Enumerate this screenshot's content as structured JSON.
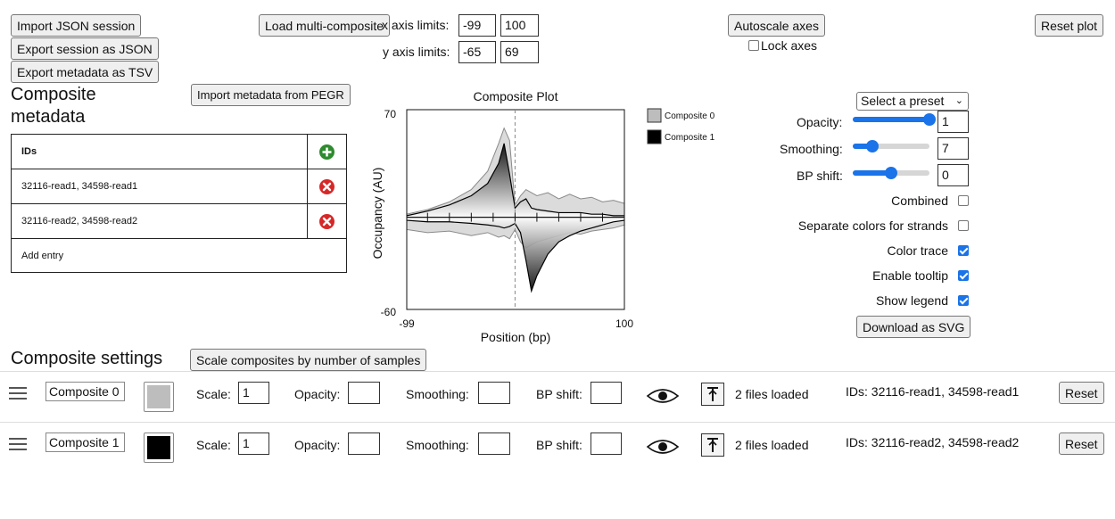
{
  "toolbar": {
    "import_json": "Import JSON session",
    "export_json": "Export session as JSON",
    "export_tsv": "Export metadata as TSV",
    "load_multi": "Load multi-composite",
    "x_limits_label": "x axis limits:",
    "y_limits_label": "y axis limits:",
    "x_min": "-99",
    "x_max": "100",
    "y_min": "-65",
    "y_max": "69",
    "autoscale": "Autoscale axes",
    "lock_axes": "Lock axes",
    "lock_axes_checked": false,
    "reset_plot": "Reset plot"
  },
  "metadata": {
    "heading_line1": "Composite",
    "heading_line2": "metadata",
    "import_pegr": "Import metadata from PEGR",
    "header": "IDs",
    "rows": [
      "32116-read1, 34598-read1",
      "32116-read2, 34598-read2"
    ],
    "add_entry": "Add entry",
    "add_icon": "plus-circle-icon",
    "remove_icon": "x-circle-icon",
    "add_color": "#2e8b2e",
    "remove_color": "#d62828"
  },
  "chart_data": {
    "type": "area",
    "title": "Composite Plot",
    "xlabel": "Position (bp)",
    "ylabel": "Occupancy (AU)",
    "xlim": [
      -99,
      100
    ],
    "ylim": [
      -60,
      70
    ],
    "x_ticks": [
      "-99",
      "100"
    ],
    "y_ticks": [
      "70",
      "-60"
    ],
    "legend": {
      "placement": "right",
      "entries": [
        "Composite 0",
        "Composite 1"
      ]
    },
    "series": [
      {
        "name": "Composite 0",
        "color": "#bdbdbd",
        "x": [
          -99,
          -80,
          -60,
          -40,
          -25,
          -15,
          -10,
          -5,
          0,
          5,
          10,
          20,
          30,
          40,
          50,
          60,
          70,
          80,
          90,
          100
        ],
        "forward": [
          2,
          5,
          10,
          18,
          30,
          48,
          58,
          50,
          8,
          14,
          18,
          14,
          16,
          12,
          15,
          12,
          13,
          10,
          11,
          9
        ],
        "reverse": [
          -8,
          -10,
          -9,
          -12,
          -10,
          -13,
          -12,
          -14,
          -8,
          -16,
          -20,
          -16,
          -14,
          -12,
          -10,
          -11,
          -9,
          -8,
          -7,
          -5
        ]
      },
      {
        "name": "Composite 1",
        "color": "#000000",
        "x": [
          -99,
          -80,
          -60,
          -40,
          -25,
          -15,
          -10,
          -5,
          0,
          5,
          10,
          15,
          20,
          30,
          40,
          50,
          60,
          70,
          80,
          90,
          100
        ],
        "forward": [
          1,
          4,
          8,
          14,
          22,
          35,
          48,
          28,
          6,
          10,
          12,
          6,
          5,
          4,
          3,
          3,
          3,
          2,
          2,
          1,
          1
        ],
        "reverse": [
          -2,
          -3,
          -3,
          -4,
          -5,
          -6,
          -7,
          -6,
          -4,
          -10,
          -28,
          -48,
          -38,
          -24,
          -16,
          -12,
          -9,
          -7,
          -5,
          -3,
          -2
        ]
      }
    ]
  },
  "settings": {
    "preset": "Select a preset",
    "opacity_label": "Opacity:",
    "opacity_value": "1",
    "opacity_level": 1.0,
    "smoothing_label": "Smoothing:",
    "smoothing_value": "7",
    "smoothing_level": 0.25,
    "bpshift_label": "BP shift:",
    "bpshift_value": "0",
    "bpshift_level": 0.5,
    "checks": [
      {
        "label": "Combined",
        "checked": false
      },
      {
        "label": "Separate colors for strands",
        "checked": false
      },
      {
        "label": "Color trace",
        "checked": true
      },
      {
        "label": "Enable tooltip",
        "checked": true
      },
      {
        "label": "Show legend",
        "checked": true
      }
    ],
    "download_svg": "Download as SVG"
  },
  "composite_settings": {
    "heading": "Composite settings",
    "scale_button": "Scale composites by number of samples",
    "scale_label": "Scale:",
    "opacity_label": "Opacity:",
    "smoothing_label": "Smoothing:",
    "bpshift_label": "BP shift:",
    "reset": "Reset",
    "composites": [
      {
        "name": "Composite 0",
        "color": "#bdbdbd",
        "scale": "1",
        "files": "2 files loaded",
        "ids": "IDs: 32116-read1, 34598-read1"
      },
      {
        "name": "Composite 1",
        "color": "#000000",
        "scale": "1",
        "files": "2 files loaded",
        "ids": "IDs: 32116-read2, 34598-read2"
      }
    ]
  }
}
